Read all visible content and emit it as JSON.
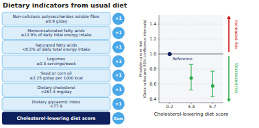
{
  "chart_data": [
    {
      "type": "score_table",
      "title": "Dietary indicators from usual diet",
      "categories": [
        "Non-cellulosic polysaccharides soluble fibre\n≥6.9 g/day",
        "Monounsaturated fatty acids\n≥12.9% of daily total energy intake",
        "Saturated fatty acids\n<8.5% of daily total energy intake",
        "Legumes\n≥0.5 servings/week",
        "Seed or corn oil\n≥2.25 g/day per 1000 kcal",
        "Dietary cholesterol\n<267.4 mg/day",
        "Dietary glycaemic index\n<77.9"
      ],
      "values": [
        1,
        1,
        1,
        1,
        1,
        1,
        1
      ],
      "value_labels": [
        "+1",
        "+1",
        "+1",
        "+1",
        "+1",
        "+1",
        "+1"
      ],
      "color": "#4aa8e8",
      "annotations": [
        {
          "text": "Cholesterol-lowering diet score",
          "label": "Sum",
          "color": "#0d1f5c"
        }
      ]
    },
    {
      "type": "errorbar",
      "categories": [
        "0-2",
        "3-4",
        "5-7"
      ],
      "values": [
        1.0,
        0.68,
        0.575
      ],
      "lower": [
        1.0,
        0.52,
        0.43
      ],
      "upper": [
        1.0,
        0.86,
        0.77
      ],
      "colors": [
        "#0d1f5c",
        "#22aa44",
        "#22aa44"
      ],
      "x_label": "Cholesterol-lowering diet score",
      "y_label": "Prostate cancer risk\n(Odds ratios and 95% confidence intervals)",
      "ylim": [
        0.35,
        1.52
      ],
      "yticks": [
        0.4,
        0.6,
        0.8,
        {
          "value": 1.0,
          "label": "1.0"
        },
        1.2,
        1.4
      ],
      "grid": true,
      "annotations": [
        {
          "text": "Reference",
          "y": 1.0,
          "color": "#555555"
        },
        {
          "text": "Increased risk",
          "color": "#cc0000"
        },
        {
          "text": "Decreased risk",
          "color": "#22aa44"
        }
      ]
    }
  ]
}
